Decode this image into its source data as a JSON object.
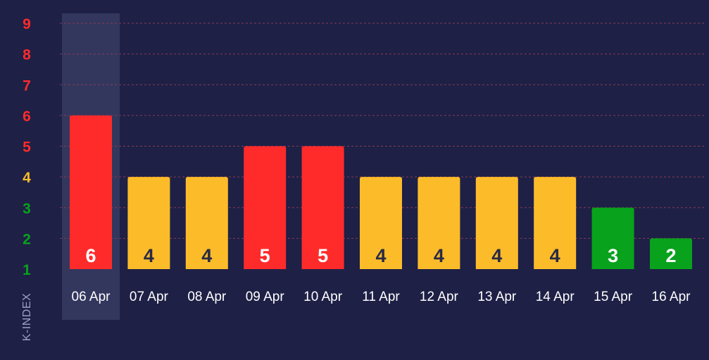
{
  "chart_data": {
    "type": "bar",
    "ylabel": "K-INDEX",
    "xlabel": "",
    "categories": [
      "06 Apr",
      "07 Apr",
      "08 Apr",
      "09 Apr",
      "10 Apr",
      "11 Apr",
      "12 Apr",
      "13 Apr",
      "14 Apr",
      "15 Apr",
      "16 Apr"
    ],
    "values": [
      6,
      4,
      4,
      5,
      5,
      4,
      4,
      4,
      4,
      3,
      2
    ],
    "yticks": [
      1,
      2,
      3,
      4,
      5,
      6,
      7,
      8,
      9
    ],
    "ylim": [
      1,
      9
    ],
    "grid": true,
    "highlighted_category": "06 Apr",
    "colors": {
      "storm": "#ff2b2b",
      "active": "#fcbc2a",
      "quiet": "#08a21c",
      "background": "#1e2046",
      "highlight": "#33375e",
      "grid": "#8a3a52"
    }
  }
}
